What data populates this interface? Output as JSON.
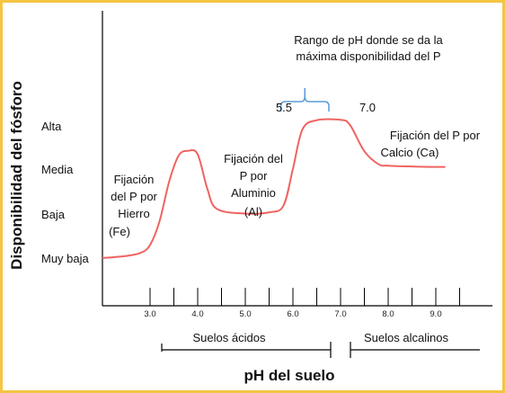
{
  "chart_data": {
    "type": "line",
    "ylabel": "Disponibilidad del fósforo",
    "xlabel": "pH del suelo",
    "y_levels": [
      "Muy baja",
      "Baja",
      "Media",
      "Alta"
    ],
    "y_level_values": [
      1,
      2,
      3,
      4
    ],
    "xlim": [
      2.0,
      10.0
    ],
    "ylim": [
      0.5,
      4.6
    ],
    "xticks": [
      3.0,
      4.0,
      5.0,
      6.0,
      7.0,
      8.0,
      9.0
    ],
    "xtick_labels": [
      "3.0",
      "4.0",
      "5.0",
      "6.0",
      "7.0",
      "8.0",
      "9.0"
    ],
    "x_intermediate_ticks": [
      3.5,
      4.5,
      5.5,
      6.5,
      7.5,
      8.5,
      9.5
    ],
    "grid": false,
    "series": [
      {
        "color": "#ef6360",
        "x": [
          2.0,
          2.5,
          2.8,
          3.0,
          3.2,
          3.4,
          3.6,
          3.8,
          4.0,
          4.2,
          4.4,
          5.0,
          5.5,
          5.8,
          6.0,
          6.2,
          6.5,
          7.0,
          7.2,
          7.5,
          7.8,
          8.0,
          8.5,
          9.0,
          9.2
        ],
        "y": [
          1.0,
          1.05,
          1.12,
          1.3,
          1.85,
          2.75,
          3.35,
          3.46,
          3.38,
          2.6,
          2.13,
          2.02,
          2.05,
          2.2,
          3.05,
          3.95,
          4.16,
          4.17,
          4.05,
          3.45,
          3.15,
          3.12,
          3.1,
          3.09,
          3.09
        ]
      }
    ],
    "range_annotation": {
      "text_line1": "Rango de pH donde se da la",
      "text_line2": "máxima disponibilidad del P",
      "from": 5.5,
      "to": 7.0,
      "from_label": "5.5",
      "to_label": "7.0"
    },
    "annotations": [
      {
        "lines": [
          "Fijación",
          "del P por",
          "Hierro",
          "(Fe)"
        ]
      },
      {
        "lines": [
          "Fijación del",
          "P por",
          "Aluminio",
          "(Al)"
        ]
      },
      {
        "lines": [
          "Fijación del P por",
          "Calcio (Ca)"
        ]
      }
    ],
    "soil_ranges": [
      {
        "label": "Suelos ácidos",
        "from": 3.0,
        "to": 7.0
      },
      {
        "label": "Suelos alcalinos",
        "from": 7.0,
        "to": 10.0
      }
    ]
  }
}
